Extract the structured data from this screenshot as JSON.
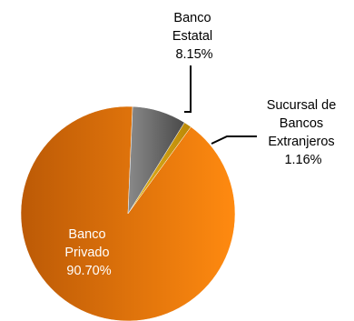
{
  "chart_data": {
    "type": "pie",
    "title": "",
    "legend": "none",
    "slices": [
      {
        "label_lines": [
          "Banco",
          "Privado"
        ],
        "value": 90.7,
        "value_label": "90.70%",
        "color": "#f07c06"
      },
      {
        "label_lines": [
          "Banco",
          "Estatal"
        ],
        "value": 8.15,
        "value_label": "8.15%",
        "color": "#6a6a6a"
      },
      {
        "label_lines": [
          "Sucursal de",
          "Bancos",
          "Extranjeros"
        ],
        "value": 1.16,
        "value_label": "1.16%",
        "color": "#d6a20e"
      }
    ]
  }
}
